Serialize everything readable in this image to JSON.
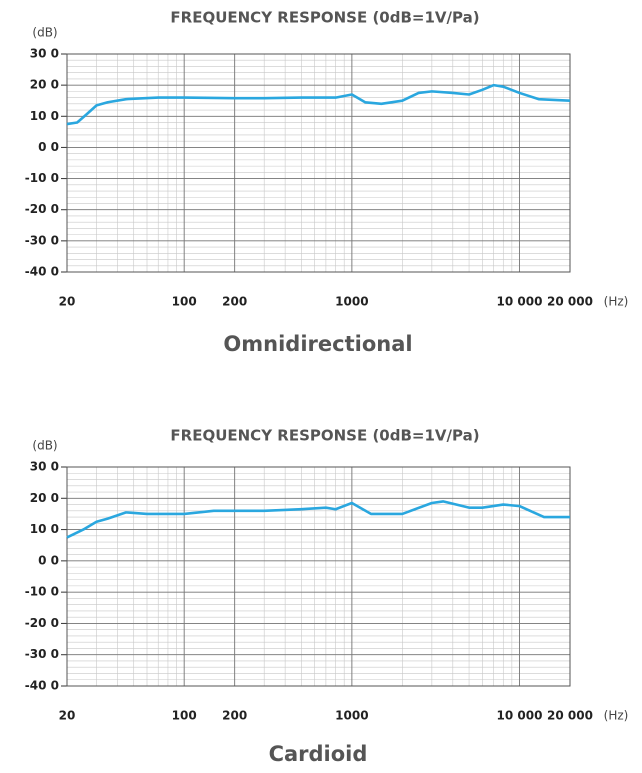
{
  "chart_data": [
    {
      "type": "line",
      "title": "FREQUENCY RESPONSE (0dB=1V/Pa)",
      "subtitle": "Omnidirectional",
      "y_label": "(dB)",
      "x_label": "(Hz)",
      "x_scale": "log",
      "grid": true,
      "x": [
        20,
        23,
        26,
        30,
        35,
        45,
        70,
        100,
        200,
        300,
        500,
        800,
        1000,
        1200,
        1500,
        2000,
        2500,
        3000,
        4000,
        5000,
        6000,
        7000,
        8000,
        10000,
        13000,
        20000
      ],
      "series": [
        {
          "color": "#2aa7df",
          "values": [
            7.5,
            8,
            10.5,
            13.5,
            14.5,
            15.5,
            16,
            16,
            15.8,
            15.8,
            16,
            16,
            17,
            14.5,
            14,
            15,
            17.5,
            18,
            17.5,
            17,
            18.5,
            20,
            19.5,
            17.5,
            15.5,
            15
          ]
        }
      ],
      "xlim": [
        20,
        20000
      ],
      "ylim": [
        -40,
        30
      ],
      "xticks": [
        20,
        100,
        200,
        1000,
        {
          "value": 10000,
          "label": "10 000"
        },
        {
          "value": 20000,
          "label": "20 000"
        }
      ],
      "yticks": [
        {
          "value": 30,
          "label": "30 0"
        },
        {
          "value": 20,
          "label": "20 0"
        },
        {
          "value": 10,
          "label": "10 0"
        },
        {
          "value": 0,
          "label": "0 0"
        },
        {
          "value": -10,
          "label": "-10 0"
        },
        {
          "value": -20,
          "label": "-20 0"
        },
        {
          "value": -30,
          "label": "-30 0"
        },
        {
          "value": -40,
          "label": "-40 0"
        }
      ]
    },
    {
      "type": "line",
      "title": "FREQUENCY RESPONSE (0dB=1V/Pa)",
      "subtitle": "Cardioid",
      "y_label": "(dB)",
      "x_label": "(Hz)",
      "x_scale": "log",
      "grid": true,
      "x": [
        20,
        25,
        30,
        35,
        45,
        60,
        100,
        150,
        200,
        300,
        500,
        700,
        800,
        1000,
        1300,
        1700,
        2000,
        3000,
        3500,
        5000,
        6000,
        8000,
        10000,
        14000,
        20000
      ],
      "series": [
        {
          "color": "#2aa7df",
          "values": [
            7.5,
            10,
            12.5,
            13.5,
            15.5,
            15,
            15,
            16,
            16,
            16,
            16.5,
            17,
            16.5,
            18.5,
            15,
            15,
            15,
            18.5,
            19,
            17,
            17,
            18,
            17.5,
            14,
            14
          ]
        }
      ],
      "xlim": [
        20,
        20000
      ],
      "ylim": [
        -40,
        30
      ],
      "xticks": [
        20,
        100,
        200,
        1000,
        {
          "value": 10000,
          "label": "10 000"
        },
        {
          "value": 20000,
          "label": "20 000"
        }
      ],
      "yticks": [
        {
          "value": 30,
          "label": "30 0"
        },
        {
          "value": 20,
          "label": "20 0"
        },
        {
          "value": 10,
          "label": "10 0"
        },
        {
          "value": 0,
          "label": "0 0"
        },
        {
          "value": -10,
          "label": "-10 0"
        },
        {
          "value": -20,
          "label": "-20 0"
        },
        {
          "value": -30,
          "label": "-30 0"
        },
        {
          "value": -40,
          "label": "-40 0"
        }
      ]
    }
  ]
}
